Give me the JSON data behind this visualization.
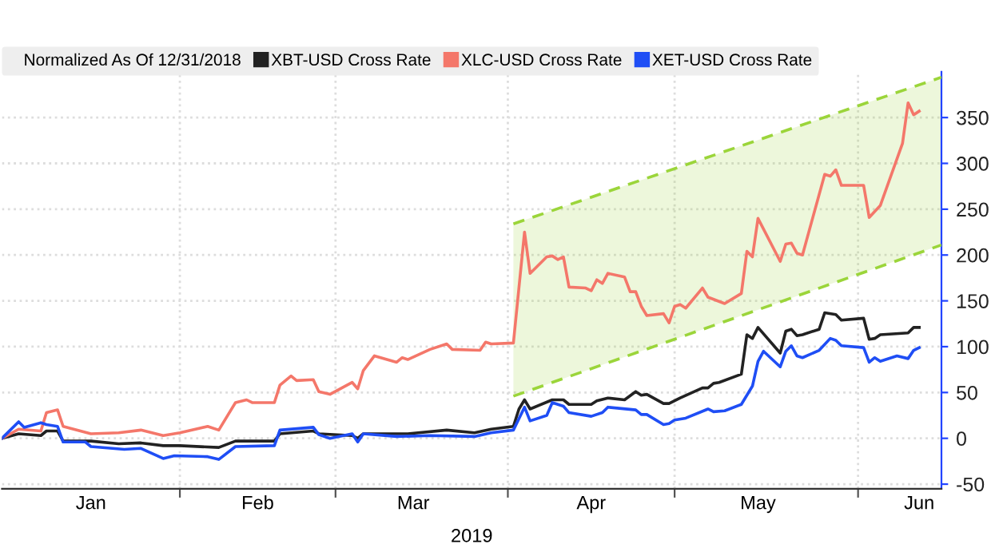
{
  "chart_data": {
    "type": "line",
    "legend_title": "Normalized As Of 12/31/2018",
    "legend": "top",
    "grid": true,
    "line_style": "solid",
    "marker": "none",
    "annotations": [
      "2019"
    ],
    "xlim": [
      "2018-12-31",
      "2019-06-18"
    ],
    "xticks": [
      {
        "value": "2019-02-01",
        "label": null
      },
      {
        "value": "2019-03-01",
        "label": null
      },
      {
        "value": "2019-04-01",
        "label": null
      },
      {
        "value": "2019-05-01",
        "label": null
      },
      {
        "value": "2019-06-03",
        "label": null
      },
      {
        "value": "2019-01-16",
        "label": "Jan"
      },
      {
        "value": "2019-02-15",
        "label": "Feb"
      },
      {
        "value": "2019-03-15",
        "label": "Mar"
      },
      {
        "value": "2019-04-16",
        "label": "Apr"
      },
      {
        "value": "2019-05-16",
        "label": "May"
      },
      {
        "value": "2019-06-14",
        "label": "Jun"
      }
    ],
    "ylim": [
      -55,
      400
    ],
    "yticks": [
      -50,
      0,
      50,
      100,
      150,
      200,
      250,
      300,
      350
    ],
    "series": [
      {
        "type": "line",
        "color": "#9bd53a",
        "line_style": "dashed",
        "x": [
          "2019-04-02",
          "2019-06-18"
        ],
        "values": [
          234,
          394
        ],
        "lower": [
          46,
          211
        ],
        "upper": [
          234,
          394
        ]
      },
      {
        "type": "line",
        "color": "#9bd53a",
        "line_style": "dashed",
        "x": [
          "2019-04-02",
          "2019-06-18"
        ],
        "values": [
          46,
          211
        ]
      },
      {
        "name": "XBT-USD Cross Rate",
        "color": "#222222",
        "x": [
          "2018-12-31",
          "2019-01-03",
          "2019-01-07",
          "2019-01-08",
          "2019-01-10",
          "2019-01-11",
          "2019-01-16",
          "2019-01-21",
          "2019-01-25",
          "2019-01-29",
          "2019-02-01",
          "2019-02-08",
          "2019-02-11",
          "2019-02-18",
          "2019-02-19",
          "2019-02-25",
          "2019-02-26",
          "2019-03-04",
          "2019-03-05",
          "2019-03-06",
          "2019-03-14",
          "2019-03-21",
          "2019-03-26",
          "2019-03-29",
          "2019-04-02",
          "2019-04-03",
          "2019-04-04",
          "2019-04-05",
          "2019-04-09",
          "2019-04-11",
          "2019-04-12",
          "2019-04-16",
          "2019-04-17",
          "2019-04-19",
          "2019-04-22",
          "2019-04-24",
          "2019-04-25",
          "2019-04-26",
          "2019-04-29",
          "2019-04-30",
          "2019-05-02",
          "2019-05-06",
          "2019-05-07",
          "2019-05-08",
          "2019-05-09",
          "2019-05-13",
          "2019-05-14",
          "2019-05-15",
          "2019-05-16",
          "2019-05-20",
          "2019-05-21",
          "2019-05-22",
          "2019-05-23",
          "2019-05-24",
          "2019-05-27",
          "2019-05-28",
          "2019-05-30",
          "2019-05-31",
          "2019-06-04",
          "2019-06-05",
          "2019-06-06",
          "2019-06-07",
          "2019-06-12",
          "2019-06-13",
          "2019-06-14"
        ],
        "values": [
          0,
          5,
          3,
          8,
          8,
          -3,
          -3,
          -6,
          -5,
          -8,
          -8,
          -10,
          -3,
          -3,
          5,
          8,
          5,
          3,
          0,
          5,
          5,
          9,
          6,
          10,
          13,
          32,
          42,
          32,
          42,
          42,
          37,
          37,
          41,
          44,
          42,
          51,
          47,
          48,
          38,
          38,
          44,
          55,
          55,
          60,
          61,
          70,
          113,
          109,
          121,
          93,
          117,
          119,
          112,
          113,
          119,
          137,
          135,
          129,
          131,
          108,
          109,
          113,
          115,
          121,
          121
        ]
      },
      {
        "name": "XLC-USD Cross Rate",
        "color": "#f4776a",
        "x": [
          "2018-12-31",
          "2019-01-03",
          "2019-01-07",
          "2019-01-08",
          "2019-01-10",
          "2019-01-11",
          "2019-01-16",
          "2019-01-21",
          "2019-01-25",
          "2019-01-29",
          "2019-02-01",
          "2019-02-06",
          "2019-02-08",
          "2019-02-11",
          "2019-02-13",
          "2019-02-14",
          "2019-02-18",
          "2019-02-19",
          "2019-02-21",
          "2019-02-22",
          "2019-02-25",
          "2019-02-26",
          "2019-02-28",
          "2019-03-04",
          "2019-03-05",
          "2019-03-06",
          "2019-03-08",
          "2019-03-12",
          "2019-03-13",
          "2019-03-14",
          "2019-03-18",
          "2019-03-21",
          "2019-03-22",
          "2019-03-27",
          "2019-03-28",
          "2019-03-29",
          "2019-04-02",
          "2019-04-04",
          "2019-04-05",
          "2019-04-08",
          "2019-04-09",
          "2019-04-10",
          "2019-04-11",
          "2019-04-12",
          "2019-04-15",
          "2019-04-16",
          "2019-04-17",
          "2019-04-18",
          "2019-04-19",
          "2019-04-22",
          "2019-04-23",
          "2019-04-24",
          "2019-04-25",
          "2019-04-26",
          "2019-04-29",
          "2019-04-30",
          "2019-05-01",
          "2019-05-02",
          "2019-05-03",
          "2019-05-06",
          "2019-05-07",
          "2019-05-10",
          "2019-05-13",
          "2019-05-14",
          "2019-05-15",
          "2019-05-16",
          "2019-05-20",
          "2019-05-21",
          "2019-05-22",
          "2019-05-23",
          "2019-05-24",
          "2019-05-28",
          "2019-05-29",
          "2019-05-30",
          "2019-05-31",
          "2019-06-04",
          "2019-06-05",
          "2019-06-07",
          "2019-06-11",
          "2019-06-12",
          "2019-06-13",
          "2019-06-14"
        ],
        "values": [
          0,
          10,
          8,
          28,
          31,
          13,
          5,
          6,
          9,
          3,
          6,
          13,
          9,
          39,
          42,
          39,
          39,
          58,
          68,
          63,
          64,
          51,
          48,
          61,
          54,
          74,
          90,
          83,
          88,
          86,
          97,
          103,
          97,
          96,
          105,
          103,
          104,
          225,
          180,
          198,
          199,
          195,
          198,
          165,
          164,
          161,
          173,
          169,
          180,
          176,
          160,
          160,
          144,
          134,
          136,
          126,
          144,
          146,
          142,
          164,
          154,
          147,
          158,
          204,
          198,
          240,
          193,
          212,
          213,
          202,
          200,
          288,
          286,
          293,
          276,
          276,
          241,
          254,
          322,
          366,
          353,
          357
        ]
      },
      {
        "name": "XET-USD Cross Rate",
        "color": "#1f4ef5",
        "x": [
          "2018-12-31",
          "2019-01-03",
          "2019-01-04",
          "2019-01-07",
          "2019-01-08",
          "2019-01-10",
          "2019-01-11",
          "2019-01-15",
          "2019-01-16",
          "2019-01-22",
          "2019-01-25",
          "2019-01-29",
          "2019-01-31",
          "2019-02-06",
          "2019-02-08",
          "2019-02-11",
          "2019-02-18",
          "2019-02-19",
          "2019-02-25",
          "2019-02-26",
          "2019-02-28",
          "2019-03-04",
          "2019-03-05",
          "2019-03-06",
          "2019-03-12",
          "2019-03-18",
          "2019-03-26",
          "2019-03-29",
          "2019-04-02",
          "2019-04-04",
          "2019-04-05",
          "2019-04-08",
          "2019-04-09",
          "2019-04-11",
          "2019-04-12",
          "2019-04-16",
          "2019-04-18",
          "2019-04-19",
          "2019-04-24",
          "2019-04-25",
          "2019-04-26",
          "2019-04-29",
          "2019-04-30",
          "2019-05-01",
          "2019-05-03",
          "2019-05-07",
          "2019-05-08",
          "2019-05-10",
          "2019-05-13",
          "2019-05-15",
          "2019-05-16",
          "2019-05-17",
          "2019-05-20",
          "2019-05-21",
          "2019-05-22",
          "2019-05-23",
          "2019-05-24",
          "2019-05-27",
          "2019-05-29",
          "2019-05-30",
          "2019-05-31",
          "2019-06-04",
          "2019-06-05",
          "2019-06-06",
          "2019-06-07",
          "2019-06-10",
          "2019-06-12",
          "2019-06-13",
          "2019-06-14"
        ],
        "values": [
          0,
          18,
          12,
          17,
          15,
          13,
          -4,
          -4,
          -9,
          -12,
          -11,
          -22,
          -19,
          -20,
          -23,
          -9,
          -8,
          9,
          12,
          4,
          0,
          5,
          -4,
          5,
          2,
          3,
          2,
          6,
          9,
          34,
          19,
          25,
          39,
          35,
          28,
          24,
          28,
          34,
          31,
          26,
          26,
          15,
          16,
          20,
          22,
          32,
          29,
          30,
          37,
          57,
          84,
          95,
          78,
          95,
          101,
          90,
          88,
          96,
          109,
          107,
          101,
          99,
          83,
          88,
          84,
          90,
          87,
          96,
          99
        ]
      }
    ]
  }
}
